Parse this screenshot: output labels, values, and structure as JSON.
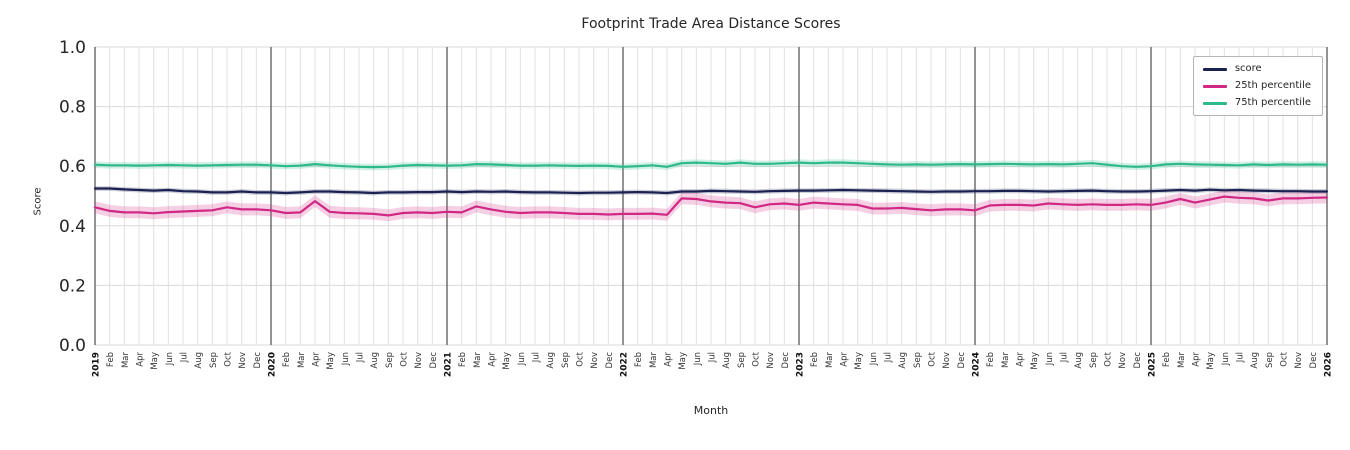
{
  "chart_data": {
    "type": "line",
    "title": "Footprint Trade Area Distance Scores",
    "xlabel": "Month",
    "ylabel": "Score",
    "ylim": [
      0.0,
      1.0
    ],
    "yticks": [
      0.0,
      0.2,
      0.4,
      0.6,
      0.8,
      1.0
    ],
    "grid": true,
    "legend_position": "upper right",
    "months": [
      "2019",
      "Feb",
      "Mar",
      "Apr",
      "May",
      "Jun",
      "Jul",
      "Aug",
      "Sep",
      "Oct",
      "Nov",
      "Dec",
      "2020",
      "Feb",
      "Mar",
      "Apr",
      "May",
      "Jun",
      "Jul",
      "Aug",
      "Sep",
      "Oct",
      "Nov",
      "Dec",
      "2021",
      "Feb",
      "Mar",
      "Apr",
      "May",
      "Jun",
      "Jul",
      "Aug",
      "Sep",
      "Oct",
      "Nov",
      "Dec",
      "2022",
      "Feb",
      "Mar",
      "Apr",
      "May",
      "Jun",
      "Jul",
      "Aug",
      "Sep",
      "Oct",
      "Nov",
      "Dec",
      "2023",
      "Feb",
      "Mar",
      "Apr",
      "May",
      "Jun",
      "Jul",
      "Aug",
      "Sep",
      "Oct",
      "Nov",
      "Dec",
      "2024",
      "Feb",
      "Mar",
      "Apr",
      "May",
      "Jun",
      "Jul",
      "Aug",
      "Sep",
      "Oct",
      "Nov",
      "Dec",
      "2025",
      "Feb",
      "Mar",
      "Apr",
      "May",
      "Jun",
      "Jul",
      "Aug",
      "Sep",
      "Oct",
      "Nov",
      "Dec",
      "2026"
    ],
    "series": [
      {
        "name": "score",
        "color": "#1b2150",
        "band": 0.008,
        "values": [
          0.525,
          0.525,
          0.522,
          0.52,
          0.518,
          0.52,
          0.516,
          0.515,
          0.512,
          0.512,
          0.515,
          0.512,
          0.512,
          0.51,
          0.512,
          0.515,
          0.515,
          0.513,
          0.512,
          0.51,
          0.512,
          0.512,
          0.513,
          0.513,
          0.515,
          0.513,
          0.515,
          0.514,
          0.515,
          0.513,
          0.512,
          0.512,
          0.511,
          0.51,
          0.511,
          0.511,
          0.512,
          0.513,
          0.512,
          0.51,
          0.515,
          0.515,
          0.517,
          0.516,
          0.515,
          0.514,
          0.516,
          0.517,
          0.518,
          0.518,
          0.519,
          0.52,
          0.519,
          0.518,
          0.517,
          0.516,
          0.515,
          0.514,
          0.515,
          0.515,
          0.516,
          0.516,
          0.517,
          0.517,
          0.516,
          0.515,
          0.516,
          0.517,
          0.518,
          0.516,
          0.515,
          0.515,
          0.516,
          0.518,
          0.52,
          0.518,
          0.521,
          0.519,
          0.52,
          0.518,
          0.517,
          0.516,
          0.516,
          0.515,
          0.515
        ]
      },
      {
        "name": "25th percentile",
        "color": "#d02884",
        "band": 0.02,
        "values": [
          0.462,
          0.45,
          0.445,
          0.445,
          0.442,
          0.446,
          0.448,
          0.45,
          0.452,
          0.462,
          0.455,
          0.455,
          0.452,
          0.443,
          0.445,
          0.483,
          0.447,
          0.443,
          0.442,
          0.44,
          0.435,
          0.443,
          0.445,
          0.443,
          0.447,
          0.445,
          0.465,
          0.455,
          0.447,
          0.443,
          0.445,
          0.445,
          0.443,
          0.44,
          0.44,
          0.438,
          0.44,
          0.44,
          0.441,
          0.437,
          0.492,
          0.49,
          0.482,
          0.478,
          0.476,
          0.462,
          0.472,
          0.475,
          0.47,
          0.478,
          0.475,
          0.472,
          0.47,
          0.458,
          0.458,
          0.46,
          0.456,
          0.452,
          0.455,
          0.455,
          0.452,
          0.468,
          0.47,
          0.47,
          0.468,
          0.475,
          0.472,
          0.47,
          0.472,
          0.47,
          0.47,
          0.472,
          0.47,
          0.478,
          0.49,
          0.478,
          0.488,
          0.498,
          0.494,
          0.492,
          0.485,
          0.492,
          0.492,
          0.494,
          0.495
        ]
      },
      {
        "name": "75th percentile",
        "color": "#2db98c",
        "band": 0.011,
        "values": [
          0.605,
          0.603,
          0.603,
          0.602,
          0.603,
          0.604,
          0.603,
          0.602,
          0.603,
          0.604,
          0.605,
          0.605,
          0.603,
          0.6,
          0.602,
          0.607,
          0.603,
          0.6,
          0.598,
          0.597,
          0.598,
          0.602,
          0.604,
          0.603,
          0.602,
          0.603,
          0.607,
          0.606,
          0.604,
          0.602,
          0.602,
          0.603,
          0.602,
          0.601,
          0.602,
          0.601,
          0.598,
          0.6,
          0.603,
          0.598,
          0.61,
          0.612,
          0.61,
          0.608,
          0.612,
          0.608,
          0.608,
          0.61,
          0.612,
          0.61,
          0.612,
          0.612,
          0.61,
          0.608,
          0.606,
          0.605,
          0.606,
          0.605,
          0.606,
          0.607,
          0.606,
          0.607,
          0.608,
          0.607,
          0.606,
          0.607,
          0.606,
          0.608,
          0.61,
          0.605,
          0.6,
          0.598,
          0.6,
          0.606,
          0.608,
          0.606,
          0.605,
          0.604,
          0.603,
          0.606,
          0.604,
          0.606,
          0.605,
          0.606,
          0.605
        ]
      }
    ]
  }
}
